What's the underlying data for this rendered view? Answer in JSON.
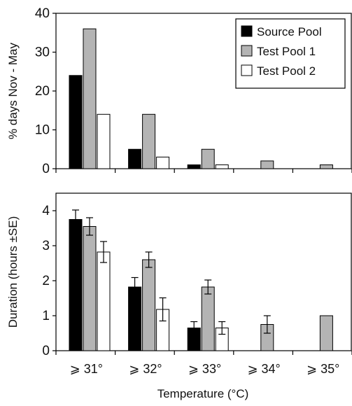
{
  "chart_data": [
    {
      "type": "bar",
      "ylabel": "% days Nov - May",
      "ylim": [
        0,
        40
      ],
      "yticks": [
        0,
        10,
        20,
        30,
        40
      ],
      "categories": [
        "≥ 31°",
        "≥ 32°",
        "≥ 33°",
        "≥ 34°",
        "≥ 35°"
      ],
      "legend_position": "top-right",
      "series": [
        {
          "name": "Source Pool",
          "color": "#000000",
          "values": [
            24,
            5,
            1,
            null,
            null
          ]
        },
        {
          "name": "Test Pool 1",
          "color": "#b4b4b4",
          "values": [
            36,
            14,
            5,
            2,
            1
          ]
        },
        {
          "name": "Test Pool 2",
          "color": "#ffffff",
          "values": [
            14,
            3,
            1,
            null,
            null
          ]
        }
      ]
    },
    {
      "type": "bar",
      "ylabel": "Duration (hours ±SE)",
      "xlabel": "Temperature (°C)",
      "ylim": [
        0,
        4.5
      ],
      "yticks": [
        0,
        1,
        2,
        3,
        4
      ],
      "categories": [
        "≥ 31°",
        "≥ 32°",
        "≥ 33°",
        "≥ 34°",
        "≥ 35°"
      ],
      "tick_labels": [
        "⩾ 31°",
        "⩾ 32°",
        "⩾ 33°",
        "⩾ 34°",
        "⩾ 35°"
      ],
      "series": [
        {
          "name": "Source Pool",
          "color": "#000000",
          "values": [
            3.75,
            1.82,
            0.65,
            null,
            null
          ],
          "errors": [
            0.27,
            0.27,
            0.18,
            null,
            null
          ]
        },
        {
          "name": "Test Pool 1",
          "color": "#b4b4b4",
          "values": [
            3.55,
            2.6,
            1.82,
            0.75,
            1.0
          ],
          "errors": [
            0.25,
            0.22,
            0.2,
            0.25,
            null
          ]
        },
        {
          "name": "Test Pool 2",
          "color": "#ffffff",
          "values": [
            2.82,
            1.18,
            0.65,
            null,
            null
          ],
          "errors": [
            0.3,
            0.33,
            0.18,
            null,
            null
          ]
        }
      ]
    }
  ]
}
